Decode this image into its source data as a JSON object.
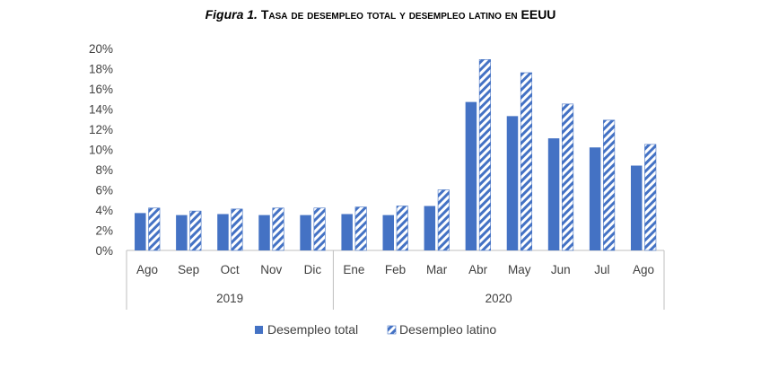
{
  "title": {
    "label": "Figura 1.",
    "text": "Tasa de desempleo total y desempleo latino en EEUU"
  },
  "chart_data": {
    "type": "bar",
    "title": "Figura 1. Tasa de desempleo total y desempleo latino en EEUU",
    "categories": [
      "Ago",
      "Sep",
      "Oct",
      "Nov",
      "Dic",
      "Ene",
      "Feb",
      "Mar",
      "Abr",
      "May",
      "Jun",
      "Jul",
      "Ago"
    ],
    "groups": [
      {
        "label": "2019",
        "count": 5
      },
      {
        "label": "2020",
        "count": 8
      }
    ],
    "series": [
      {
        "name": "Desempleo total",
        "values": [
          3.7,
          3.5,
          3.6,
          3.5,
          3.5,
          3.6,
          3.5,
          4.4,
          14.7,
          13.3,
          11.1,
          10.2,
          8.4
        ],
        "color": "#4472C4",
        "pattern": "solid"
      },
      {
        "name": "Desempleo latino",
        "values": [
          4.2,
          3.9,
          4.1,
          4.2,
          4.2,
          4.3,
          4.4,
          6.0,
          18.9,
          17.6,
          14.5,
          12.9,
          10.5
        ],
        "color": "#4472C4",
        "pattern": "diagonal-stripes"
      }
    ],
    "y_ticks": [
      "0%",
      "2%",
      "4%",
      "6%",
      "8%",
      "10%",
      "12%",
      "14%",
      "16%",
      "18%",
      "20%"
    ],
    "ylim": [
      0,
      20
    ],
    "ystep": 2,
    "grid": false,
    "legend_position": "bottom"
  }
}
